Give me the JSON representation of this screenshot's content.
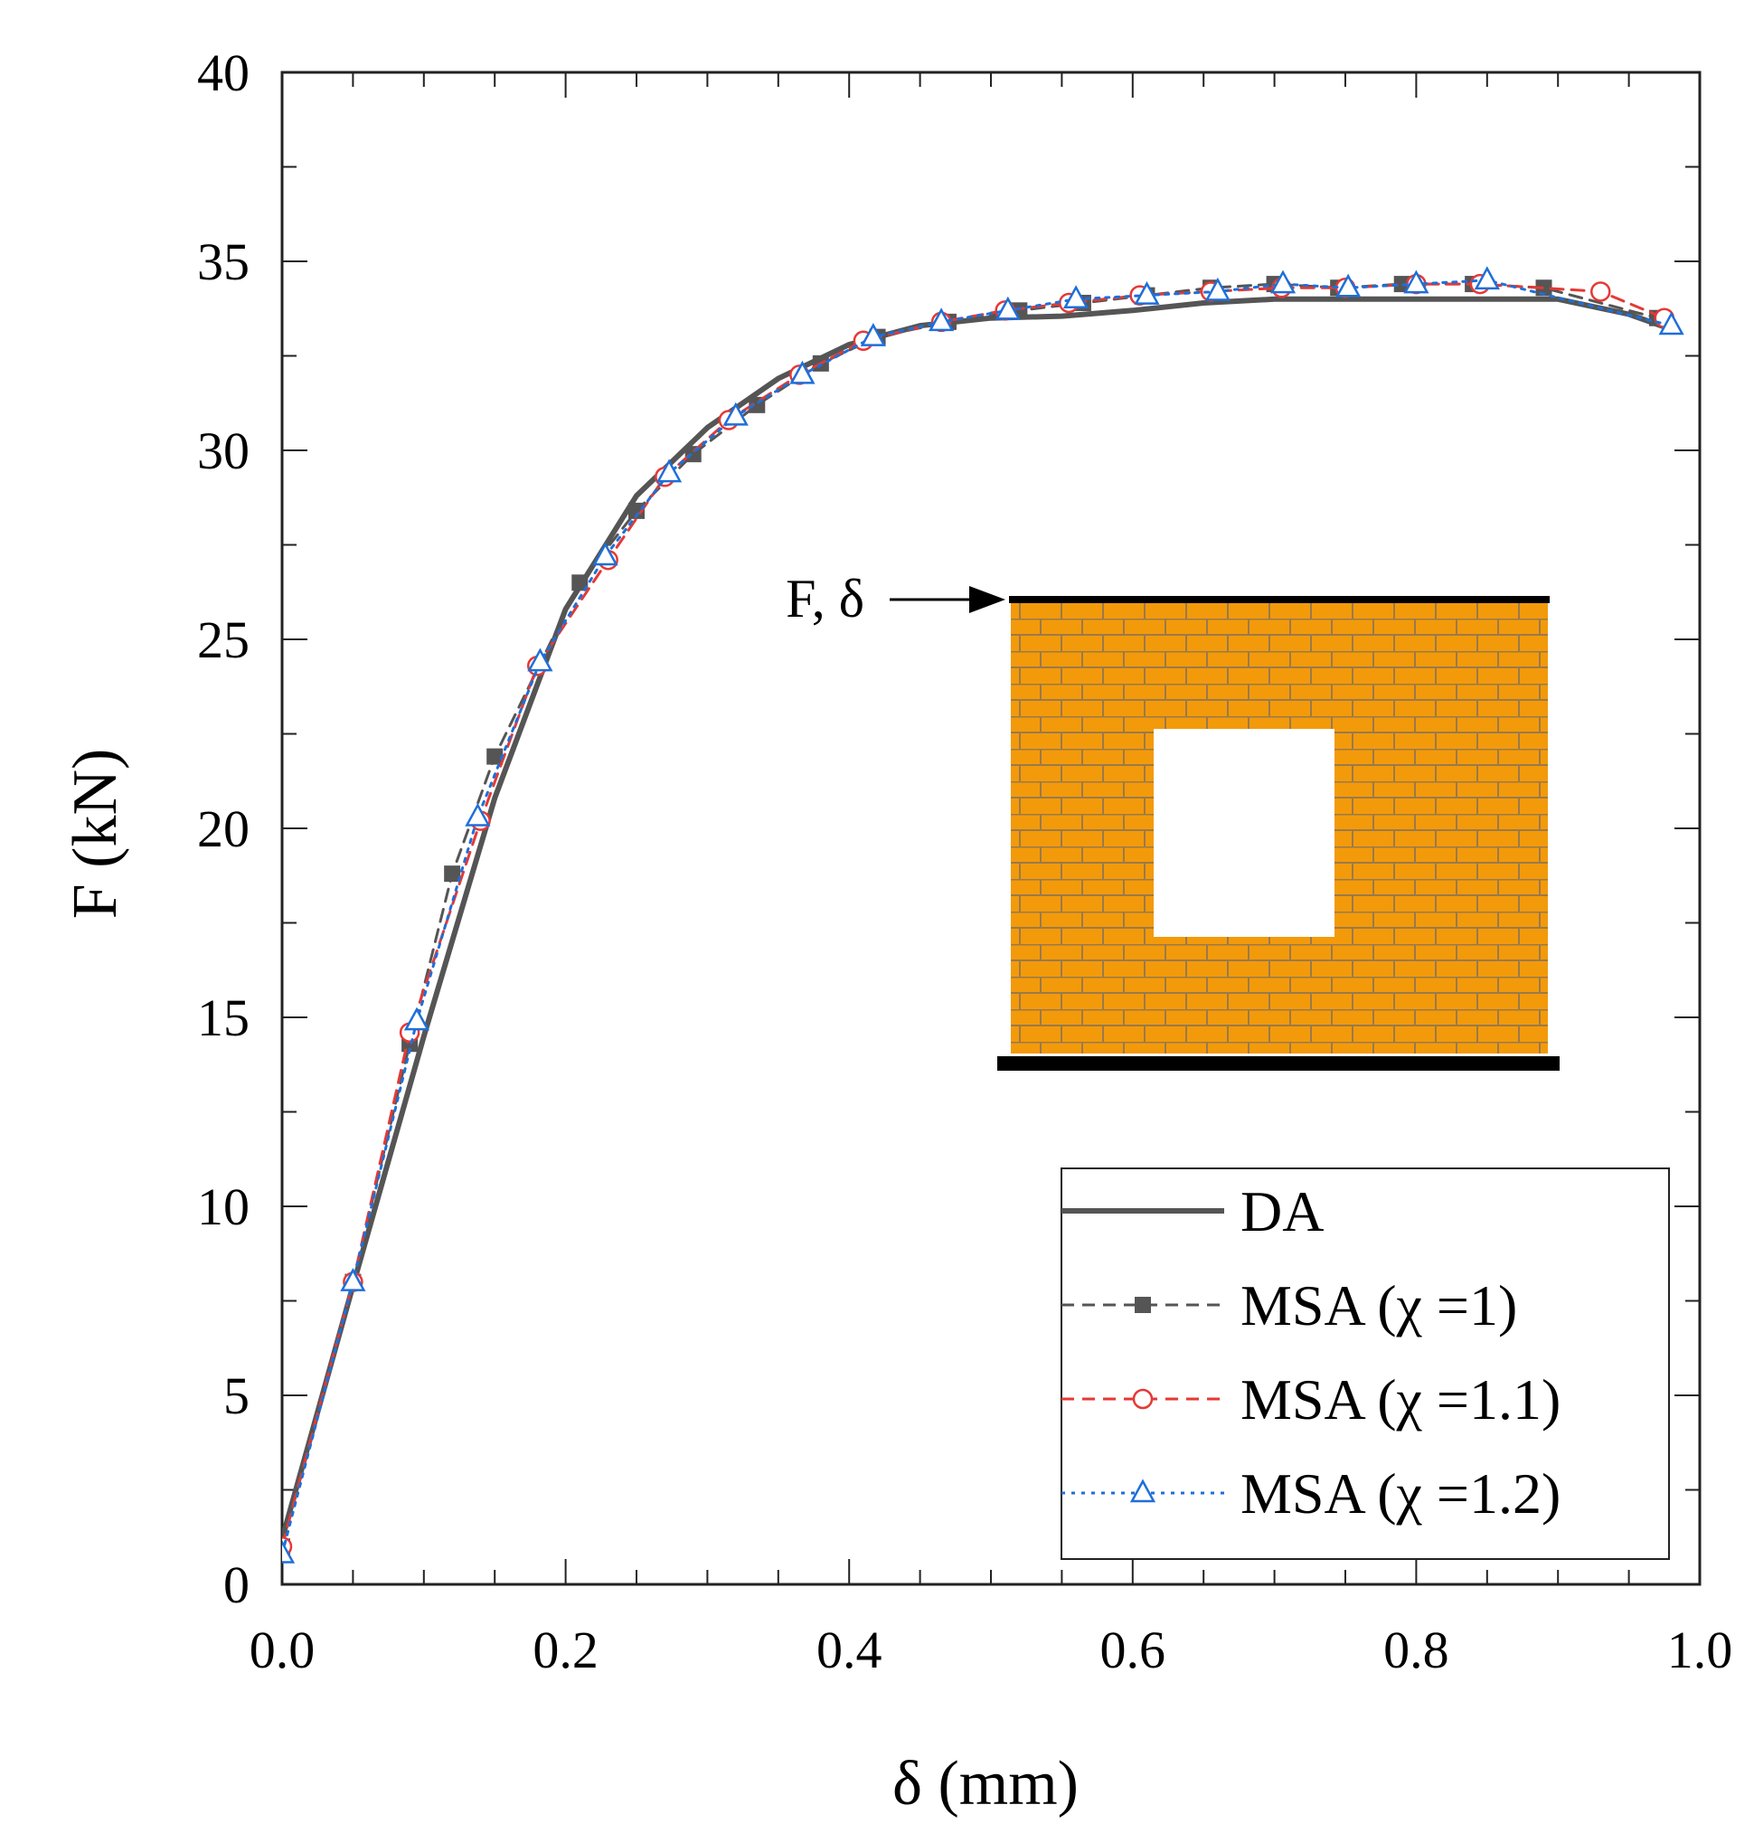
{
  "chart_data": {
    "type": "line",
    "title": "",
    "xlabel": "δ (mm)",
    "ylabel": "F (kN)",
    "xlim": [
      0.0,
      1.0
    ],
    "ylim": [
      0,
      40
    ],
    "xticks": [
      0.0,
      0.2,
      0.4,
      0.6,
      0.8,
      1.0
    ],
    "xtick_labels": [
      "0.0",
      "0.2",
      "0.4",
      "0.6",
      "0.8",
      "1.0"
    ],
    "yticks": [
      0,
      5,
      10,
      15,
      20,
      25,
      30,
      35,
      40
    ],
    "ytick_labels": [
      "0",
      "5",
      "10",
      "15",
      "20",
      "25",
      "30",
      "35",
      "40"
    ],
    "grid": false,
    "legend_position": "bottom-right",
    "series": [
      {
        "name": "DA",
        "color": "#555555",
        "line_style": "solid",
        "marker": "none",
        "x": [
          0.0,
          0.05,
          0.1,
          0.15,
          0.2,
          0.25,
          0.3,
          0.35,
          0.4,
          0.45,
          0.5,
          0.55,
          0.6,
          0.65,
          0.7,
          0.75,
          0.8,
          0.85,
          0.9,
          0.95,
          0.98
        ],
        "y": [
          1.2,
          7.9,
          14.5,
          20.8,
          25.8,
          28.8,
          30.6,
          31.9,
          32.8,
          33.3,
          33.5,
          33.55,
          33.7,
          33.9,
          34.0,
          34.0,
          34.0,
          34.0,
          34.0,
          33.6,
          33.2
        ]
      },
      {
        "name": "MSA (χ =1)",
        "color": "#555555",
        "line_style": "dashed",
        "marker": "square",
        "x": [
          0.0,
          0.05,
          0.09,
          0.12,
          0.15,
          0.21,
          0.25,
          0.29,
          0.335,
          0.38,
          0.42,
          0.47,
          0.52,
          0.565,
          0.61,
          0.655,
          0.7,
          0.745,
          0.79,
          0.84,
          0.89,
          0.97
        ],
        "y": [
          1.0,
          8.0,
          14.3,
          18.8,
          21.9,
          26.5,
          28.4,
          29.9,
          31.2,
          32.3,
          33.0,
          33.4,
          33.7,
          33.9,
          34.1,
          34.3,
          34.4,
          34.3,
          34.4,
          34.4,
          34.3,
          33.5
        ]
      },
      {
        "name": "MSA (χ =1.1)",
        "color": "#e53935",
        "line_style": "dashed",
        "marker": "circle",
        "x": [
          0.0,
          0.05,
          0.09,
          0.14,
          0.18,
          0.23,
          0.27,
          0.315,
          0.365,
          0.41,
          0.465,
          0.51,
          0.555,
          0.605,
          0.655,
          0.705,
          0.75,
          0.8,
          0.845,
          0.93,
          0.975
        ],
        "y": [
          1.0,
          8.0,
          14.6,
          20.2,
          24.3,
          27.1,
          29.3,
          30.8,
          32.0,
          32.9,
          33.4,
          33.7,
          33.9,
          34.1,
          34.2,
          34.3,
          34.3,
          34.4,
          34.4,
          34.2,
          33.5
        ]
      },
      {
        "name": "MSA (χ =1.2)",
        "color": "#1e6fd9",
        "line_style": "dotted",
        "marker": "triangle",
        "x": [
          0.0,
          0.05,
          0.095,
          0.138,
          0.182,
          0.228,
          0.273,
          0.32,
          0.367,
          0.417,
          0.465,
          0.512,
          0.56,
          0.61,
          0.66,
          0.706,
          0.752,
          0.8,
          0.85,
          0.98
        ],
        "y": [
          0.8,
          8.0,
          14.9,
          20.3,
          24.4,
          27.2,
          29.4,
          30.9,
          32.0,
          33.0,
          33.4,
          33.7,
          34.0,
          34.1,
          34.2,
          34.4,
          34.3,
          34.4,
          34.5,
          33.3
        ]
      }
    ],
    "inset": {
      "load_label": "F, δ",
      "wall_color": "#f39a0b",
      "mortar_color": "#9a7a4a"
    }
  }
}
